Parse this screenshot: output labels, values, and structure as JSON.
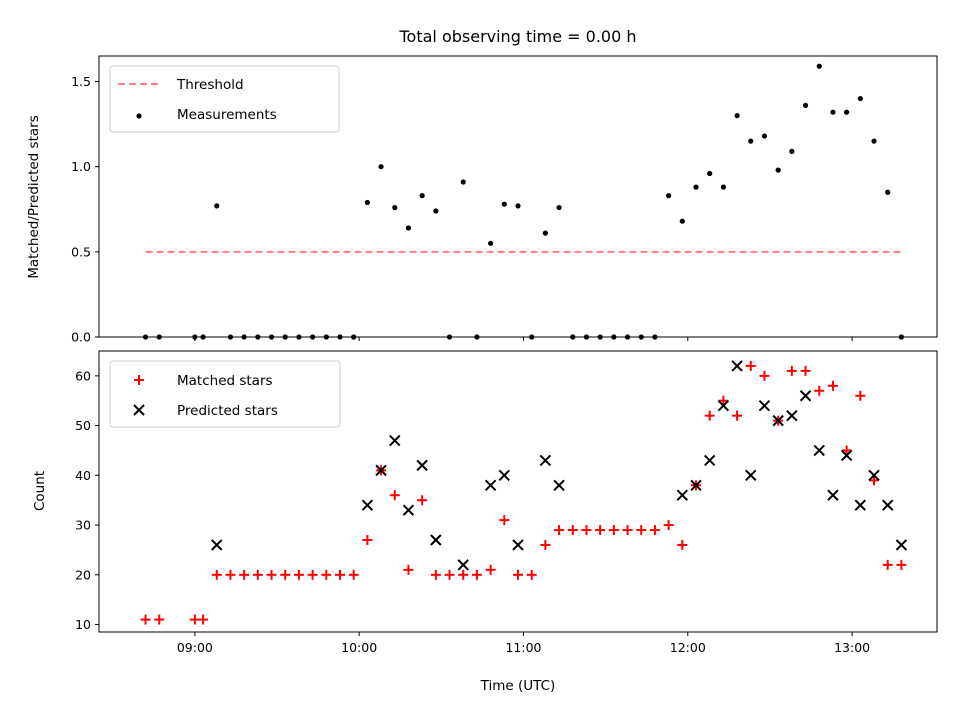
{
  "chart_data": [
    {
      "type": "scatter",
      "title": "Total observing time = 0.00 h",
      "xlabel": "",
      "ylabel": "Matched/Predicted stars",
      "xlim": [
        "08:25",
        "13:31"
      ],
      "ylim": [
        0,
        1.65
      ],
      "yticks": [
        "0.0",
        "0.5",
        "1.0",
        "1.5"
      ],
      "legend": {
        "position": "top-left",
        "entries": [
          "Threshold",
          "Measurements"
        ]
      },
      "threshold": {
        "name": "Threshold",
        "value": 0.5,
        "x_range": [
          "08:42",
          "13:18"
        ],
        "color": "#ff7f7f",
        "style": "dashed"
      },
      "series": [
        {
          "name": "Measurements",
          "color": "#000000",
          "x": [
            "08:42",
            "08:47",
            "09:00",
            "09:03",
            "09:08",
            "09:13",
            "09:18",
            "09:23",
            "09:28",
            "09:33",
            "09:38",
            "09:43",
            "09:48",
            "09:53",
            "09:58",
            "10:03",
            "10:08",
            "10:13",
            "10:18",
            "10:23",
            "10:28",
            "10:33",
            "10:38",
            "10:43",
            "10:48",
            "10:53",
            "10:58",
            "11:03",
            "11:08",
            "11:13",
            "11:18",
            "11:23",
            "11:28",
            "11:33",
            "11:38",
            "11:43",
            "11:48",
            "11:53",
            "11:58",
            "12:03",
            "12:08",
            "12:13",
            "12:18",
            "12:23",
            "12:28",
            "12:33",
            "12:38",
            "12:43",
            "12:48",
            "12:53",
            "12:58",
            "13:03",
            "13:08",
            "13:13",
            "13:18"
          ],
          "y": [
            0,
            0,
            0,
            0,
            0.77,
            0,
            0,
            0,
            0,
            0,
            0,
            0,
            0,
            0,
            0,
            0.79,
            1.0,
            0.76,
            0.64,
            0.83,
            0.74,
            0,
            0.91,
            0,
            0.55,
            0.78,
            0.77,
            0,
            0.61,
            0.76,
            0,
            0,
            0,
            0,
            0,
            0,
            0,
            0.83,
            0.68,
            0.88,
            0.96,
            0.88,
            1.3,
            1.15,
            1.18,
            0.98,
            1.09,
            1.36,
            1.59,
            1.32,
            1.32,
            1.4,
            1.15,
            0.85,
            0
          ]
        }
      ]
    },
    {
      "type": "scatter",
      "title": "",
      "xlabel": "Time (UTC)",
      "ylabel": "Count",
      "xlim": [
        "08:25",
        "13:31"
      ],
      "ylim": [
        8.5,
        65
      ],
      "yticks": [
        "10",
        "20",
        "30",
        "40",
        "50",
        "60"
      ],
      "xticks": [
        "09:00",
        "10:00",
        "11:00",
        "12:00",
        "13:00"
      ],
      "legend": {
        "position": "top-left",
        "entries": [
          "Matched stars",
          "Predicted stars"
        ]
      },
      "categories_x": [
        "08:42",
        "08:47",
        "09:00",
        "09:03",
        "09:08",
        "09:13",
        "09:18",
        "09:23",
        "09:28",
        "09:33",
        "09:38",
        "09:43",
        "09:48",
        "09:53",
        "09:58",
        "10:03",
        "10:08",
        "10:13",
        "10:18",
        "10:23",
        "10:28",
        "10:33",
        "10:38",
        "10:43",
        "10:48",
        "10:53",
        "10:58",
        "11:03",
        "11:08",
        "11:13",
        "11:18",
        "11:23",
        "11:28",
        "11:33",
        "11:38",
        "11:43",
        "11:48",
        "11:53",
        "11:58",
        "12:03",
        "12:08",
        "12:13",
        "12:18",
        "12:23",
        "12:28",
        "12:33",
        "12:38",
        "12:43",
        "12:48",
        "12:53",
        "12:58",
        "13:03",
        "13:08",
        "13:13",
        "13:18"
      ],
      "series": [
        {
          "name": "Matched stars",
          "color": "#ff0000",
          "marker": "plus",
          "x": [
            "08:42",
            "08:47",
            "09:00",
            "09:03",
            "09:08",
            "09:13",
            "09:18",
            "09:23",
            "09:28",
            "09:33",
            "09:38",
            "09:43",
            "09:48",
            "09:53",
            "09:58",
            "10:03",
            "10:08",
            "10:13",
            "10:18",
            "10:23",
            "10:28",
            "10:33",
            "10:38",
            "10:43",
            "10:48",
            "10:53",
            "10:58",
            "11:03",
            "11:08",
            "11:13",
            "11:18",
            "11:23",
            "11:28",
            "11:33",
            "11:38",
            "11:43",
            "11:48",
            "11:53",
            "11:58",
            "12:03",
            "12:08",
            "12:13",
            "12:18",
            "12:23",
            "12:28",
            "12:33",
            "12:38",
            "12:43",
            "12:48",
            "12:53",
            "12:58",
            "13:03",
            "13:08",
            "13:13",
            "13:18"
          ],
          "y": [
            11,
            11,
            11,
            11,
            20,
            20,
            20,
            20,
            20,
            20,
            20,
            20,
            20,
            20,
            20,
            27,
            41,
            36,
            21,
            35,
            20,
            20,
            20,
            20,
            21,
            31,
            20,
            20,
            26,
            29,
            29,
            29,
            29,
            29,
            29,
            29,
            29,
            30,
            26,
            38,
            52,
            55,
            52,
            62,
            60,
            51,
            61,
            61,
            57,
            58,
            45,
            56,
            39,
            22,
            22
          ]
        },
        {
          "name": "Predicted stars",
          "color": "#000000",
          "marker": "x",
          "x": [
            "09:08",
            "10:03",
            "10:08",
            "10:13",
            "10:18",
            "10:23",
            "10:28",
            "10:38",
            "10:48",
            "10:53",
            "10:58",
            "11:08",
            "11:13",
            "11:58",
            "12:03",
            "12:08",
            "12:13",
            "12:18",
            "12:23",
            "12:28",
            "12:33",
            "12:38",
            "12:43",
            "12:48",
            "12:53",
            "12:58",
            "13:03",
            "13:08",
            "13:13",
            "13:18"
          ],
          "y": [
            26,
            34,
            41,
            47,
            33,
            42,
            27,
            22,
            38,
            40,
            26,
            43,
            38,
            36,
            38,
            43,
            54,
            62,
            40,
            54,
            51,
            52,
            56,
            45,
            36,
            44,
            34,
            40,
            34,
            26
          ]
        }
      ]
    }
  ]
}
